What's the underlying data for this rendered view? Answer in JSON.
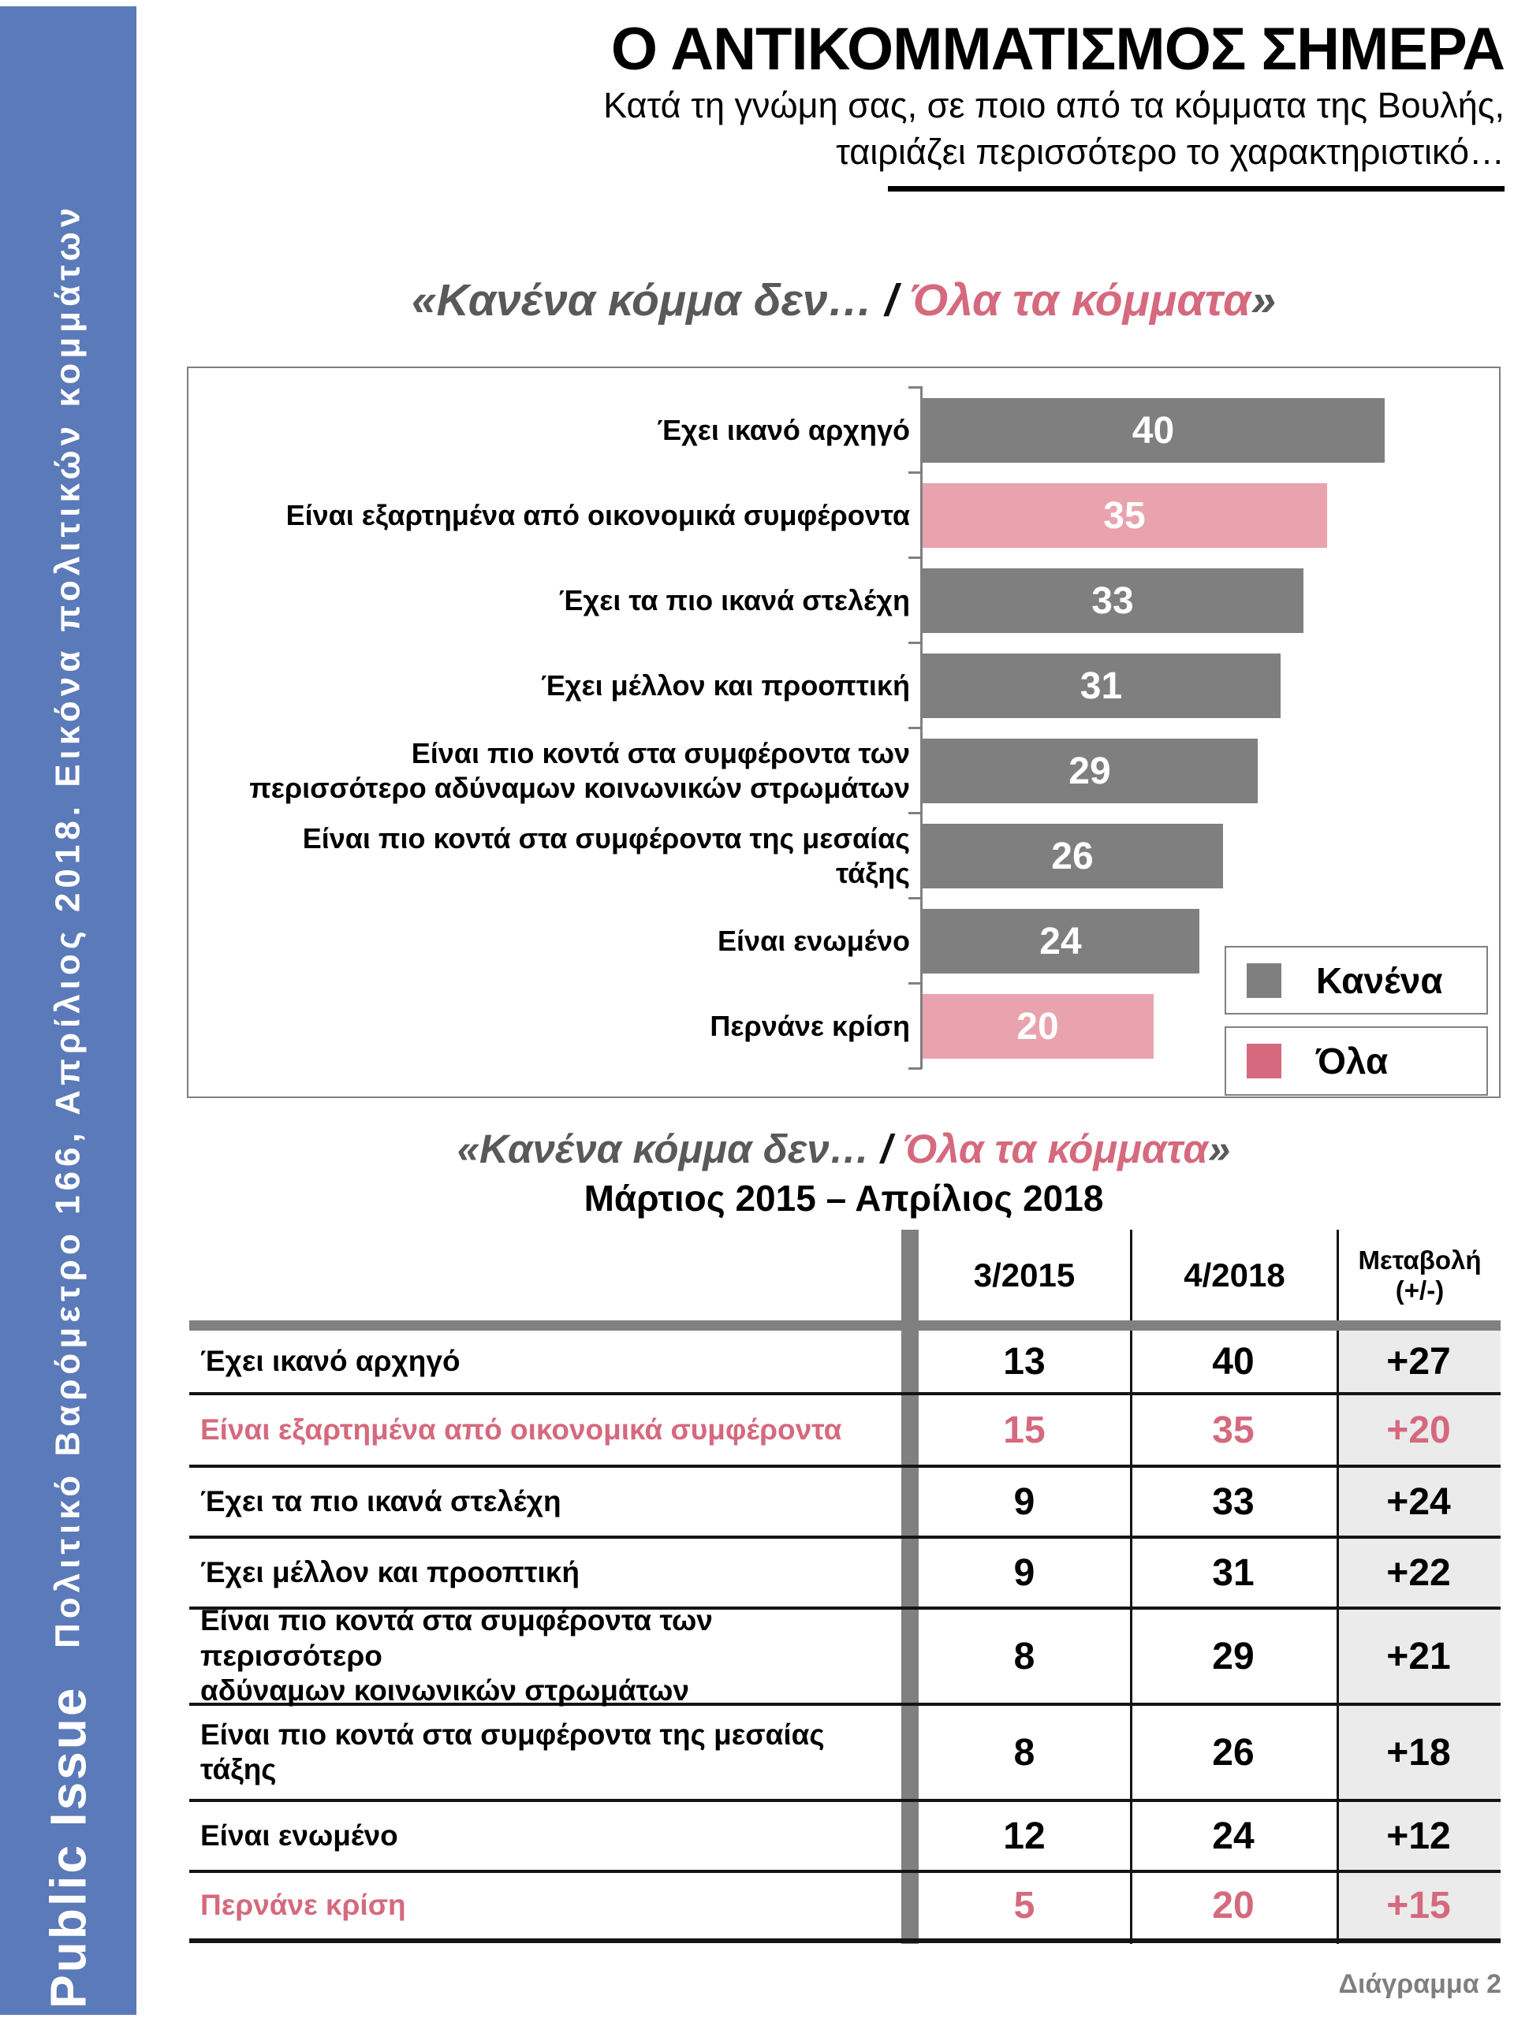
{
  "colors": {
    "sidebar_blue": "#5b7ab9",
    "bar_none": "#7f7f7f",
    "bar_all": "#e9a3ae",
    "accent_red": "#d5697d",
    "banner_gray": "#595959",
    "table_col_bg": "#ebebeb",
    "divider_gray": "#808080",
    "line_dark": "#141414",
    "footer_gray": "#7f7f7f"
  },
  "sidebar": {
    "brand": "Public Issue",
    "caption": "Πολιτικό Βαρόμετρο 166, Απρίλιος 2018. Εικόνα πολιτικών κομμάτων"
  },
  "header": {
    "title": "Ο ΑΝΤΙΚΟΜΜΑΤΙΣΜΟΣ ΣΗΜΕΡΑ",
    "question_line1": "Κατά τη γνώμη σας, σε ποιο από τα κόμματα της Βουλής,",
    "question_line2": "ταιριάζει περισσότερο το χαρακτηριστικό…"
  },
  "banner": {
    "left": "«Κανένα κόμμα δεν… ",
    "slash": "/ ",
    "right": "Όλα τα κόμματα",
    "close": "»"
  },
  "chart_data": {
    "type": "bar",
    "orientation": "horizontal",
    "title": "«Κανένα κόμμα δεν… / Όλα τα κόμματα»",
    "categories": [
      "Έχει ικανό αρχηγό",
      "Είναι εξαρτημένα από οικονομικά συμφέροντα",
      "Έχει τα πιο ικανά στελέχη",
      "Έχει μέλλον και προοπτική",
      "Είναι πιο κοντά στα συμφέροντα των\nπερισσότερο αδύναμων κοινωνικών στρωμάτων",
      "Είναι πιο κοντά στα συμφέροντα της μεσαίας\nτάξης",
      "Είναι ενωμένο",
      "Περνάνε κρίση"
    ],
    "values": [
      40,
      35,
      33,
      31,
      29,
      26,
      24,
      20
    ],
    "series_key": [
      "none",
      "all",
      "none",
      "none",
      "none",
      "none",
      "none",
      "all"
    ],
    "xlim": [
      0,
      45
    ],
    "grid": false,
    "value_labels": "inside-white",
    "legend_position": "bottom-right",
    "legend": [
      {
        "key": "none",
        "label": "Κανένα",
        "color": "#7f7f7f"
      },
      {
        "key": "all",
        "label": "Όλα",
        "color": "#d5697d"
      }
    ]
  },
  "table": {
    "subtitle": "Μάρτιος 2015 – Απρίλιος 2018",
    "col_2015": "3/2015",
    "col_2018": "4/2018",
    "col_change_line1": "Μεταβολή",
    "col_change_line2": "(+/-)",
    "rows": [
      {
        "label": "Έχει ικανό αρχηγό",
        "v2015": "13",
        "v2018": "40",
        "change": "+27",
        "accent": false
      },
      {
        "label": "Είναι εξαρτημένα από οικονομικά συμφέροντα",
        "v2015": "15",
        "v2018": "35",
        "change": "+20",
        "accent": true
      },
      {
        "label": "Έχει τα πιο ικανά στελέχη",
        "v2015": "9",
        "v2018": "33",
        "change": "+24",
        "accent": false
      },
      {
        "label": "Έχει μέλλον και προοπτική",
        "v2015": "9",
        "v2018": "31",
        "change": "+22",
        "accent": false
      },
      {
        "label": "Είναι πιο κοντά στα συμφέροντα των περισσότερο\nαδύναμων κοινωνικών στρωμάτων",
        "v2015": "8",
        "v2018": "29",
        "change": "+21",
        "accent": false
      },
      {
        "label": "Είναι πιο κοντά στα συμφέροντα της μεσαίας\nτάξης",
        "v2015": "8",
        "v2018": "26",
        "change": "+18",
        "accent": false
      },
      {
        "label": "Είναι ενωμένο",
        "v2015": "12",
        "v2018": "24",
        "change": "+12",
        "accent": false
      },
      {
        "label": "Περνάνε κρίση",
        "v2015": "5",
        "v2018": "20",
        "change": "+15",
        "accent": true
      }
    ]
  },
  "footer": {
    "caption": "Διάγραμμα 2"
  }
}
